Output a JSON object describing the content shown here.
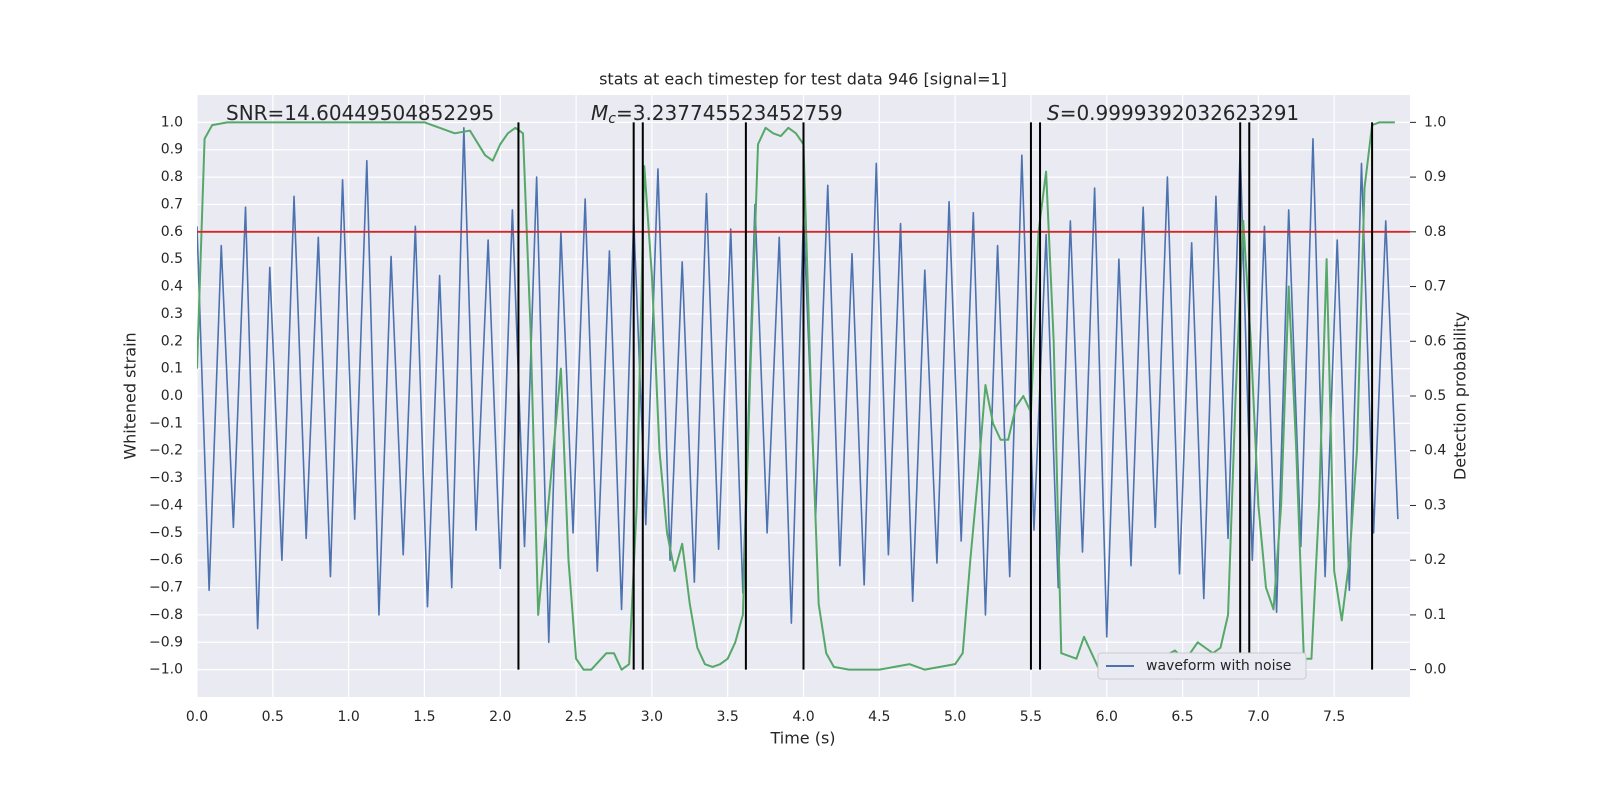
{
  "chart_data": {
    "type": "line",
    "title": "stats at each timestep for test data 946 [signal=1]",
    "x_label": "Time (s)",
    "y_label": "Whitened strain",
    "y2_label": "Detection probability",
    "annotations": [
      {
        "text": "SNR=14.60449504852295"
      },
      {
        "symbol": "M",
        "subscript": "c",
        "text": "=3.237745523452759"
      },
      {
        "symbol": "S",
        "text": "=0.9999392032623291"
      }
    ],
    "xlim": [
      0,
      8.0
    ],
    "ylim": [
      -1.1,
      1.1
    ],
    "y2lim": [
      -0.05,
      1.05
    ],
    "xticks": [
      {
        "value": 0,
        "label": "0.0"
      },
      0.5,
      {
        "value": 1,
        "label": "1.0"
      },
      1.5,
      {
        "value": 2,
        "label": "2.0"
      },
      2.5,
      {
        "value": 3,
        "label": "3.0"
      },
      3.5,
      {
        "value": 4,
        "label": "4.0"
      },
      4.5,
      {
        "value": 5,
        "label": "5.0"
      },
      5.5,
      {
        "value": 6,
        "label": "6.0"
      },
      6.5,
      {
        "value": 7,
        "label": "7.0"
      },
      7.5
    ],
    "yticks": [
      {
        "value": -1,
        "label": "−1.0"
      },
      {
        "value": -0.9,
        "label": "−0.9"
      },
      {
        "value": -0.8,
        "label": "−0.8"
      },
      {
        "value": -0.7,
        "label": "−0.7"
      },
      {
        "value": -0.6,
        "label": "−0.6"
      },
      {
        "value": -0.5,
        "label": "−0.5"
      },
      {
        "value": -0.4,
        "label": "−0.4"
      },
      {
        "value": -0.3,
        "label": "−0.3"
      },
      {
        "value": -0.2,
        "label": "−0.2"
      },
      {
        "value": -0.1,
        "label": "−0.1"
      },
      {
        "value": 0,
        "label": "0.0"
      },
      0.1,
      0.2,
      0.3,
      0.4,
      0.5,
      0.6,
      0.7,
      0.8,
      0.9,
      {
        "value": 1,
        "label": "1.0"
      }
    ],
    "y2ticks": [
      {
        "value": 0,
        "label": "0.0"
      },
      0.1,
      0.2,
      0.3,
      0.4,
      0.5,
      0.6,
      0.7,
      0.8,
      0.9,
      {
        "value": 1,
        "label": "1.0"
      }
    ],
    "grid": true,
    "legend": "lower right",
    "series": [
      {
        "name": "waveform with noise",
        "color": "#4c72b0",
        "x": [
          0,
          0.08,
          0.16,
          0.24,
          0.32,
          0.4,
          0.48,
          0.56,
          0.64,
          0.72,
          0.8,
          0.88,
          0.96,
          1.04,
          1.12,
          1.2,
          1.28,
          1.36,
          1.44,
          1.52,
          1.6,
          1.68,
          1.76,
          1.84,
          1.92,
          2.0,
          2.08,
          2.16,
          2.24,
          2.32,
          2.4,
          2.48,
          2.56,
          2.64,
          2.72,
          2.8,
          2.88,
          2.96,
          3.04,
          3.12,
          3.2,
          3.28,
          3.36,
          3.44,
          3.52,
          3.6,
          3.68,
          3.76,
          3.84,
          3.92,
          4.0,
          4.08,
          4.16,
          4.24,
          4.32,
          4.4,
          4.48,
          4.56,
          4.64,
          4.72,
          4.8,
          4.88,
          4.96,
          5.04,
          5.12,
          5.2,
          5.28,
          5.36,
          5.44,
          5.52,
          5.6,
          5.68,
          5.76,
          5.84,
          5.92,
          6.0,
          6.08,
          6.16,
          6.24,
          6.32,
          6.4,
          6.48,
          6.56,
          6.64,
          6.72,
          6.8,
          6.88,
          6.96,
          7.04,
          7.12,
          7.2,
          7.28,
          7.36,
          7.44,
          7.52,
          7.6,
          7.68,
          7.76,
          7.84,
          7.92
        ],
        "values": [
          0.62,
          -0.71,
          0.55,
          -0.48,
          0.69,
          -0.85,
          0.47,
          -0.6,
          0.73,
          -0.52,
          0.58,
          -0.66,
          0.79,
          -0.45,
          0.86,
          -0.8,
          0.51,
          -0.58,
          0.62,
          -0.77,
          0.44,
          -0.7,
          0.98,
          -0.49,
          0.57,
          -0.63,
          0.68,
          -0.55,
          0.8,
          -0.9,
          0.6,
          -0.5,
          0.72,
          -0.64,
          0.53,
          -0.78,
          0.65,
          -0.47,
          0.83,
          -0.6,
          0.49,
          -0.68,
          0.74,
          -0.56,
          0.61,
          -0.72,
          0.7,
          -0.5,
          0.58,
          -0.83,
          0.66,
          -0.44,
          0.77,
          -0.62,
          0.52,
          -0.69,
          0.85,
          -0.58,
          0.63,
          -0.75,
          0.46,
          -0.61,
          0.71,
          -0.53,
          0.67,
          -0.8,
          0.55,
          -0.66,
          0.88,
          -0.49,
          0.59,
          -0.7,
          0.64,
          -0.57,
          0.76,
          -0.88,
          0.5,
          -0.62,
          0.69,
          -0.48,
          0.8,
          -0.65,
          0.56,
          -0.74,
          0.73,
          -0.52,
          0.9,
          -0.6,
          0.62,
          -0.79,
          0.68,
          -0.55,
          0.94,
          -0.66,
          0.57,
          -0.71,
          0.85,
          -0.5,
          0.64,
          -0.45
        ]
      },
      {
        "color": "#55a868",
        "axis": "y2",
        "x": [
          0,
          0.05,
          0.1,
          0.2,
          0.5,
          1.0,
          1.5,
          1.6,
          1.7,
          1.8,
          1.9,
          1.95,
          2.0,
          2.05,
          2.1,
          2.15,
          2.2,
          2.25,
          2.3,
          2.35,
          2.4,
          2.45,
          2.5,
          2.55,
          2.6,
          2.7,
          2.75,
          2.8,
          2.85,
          2.9,
          2.95,
          3.0,
          3.05,
          3.1,
          3.15,
          3.2,
          3.25,
          3.3,
          3.35,
          3.4,
          3.45,
          3.5,
          3.55,
          3.6,
          3.65,
          3.7,
          3.75,
          3.8,
          3.85,
          3.9,
          3.95,
          4.0,
          4.05,
          4.1,
          4.15,
          4.2,
          4.3,
          4.5,
          4.6,
          4.7,
          4.8,
          4.9,
          5.0,
          5.05,
          5.1,
          5.15,
          5.2,
          5.25,
          5.3,
          5.35,
          5.4,
          5.45,
          5.5,
          5.55,
          5.6,
          5.65,
          5.7,
          5.8,
          5.85,
          5.9,
          5.95,
          6.0,
          6.2,
          6.3,
          6.35,
          6.45,
          6.5,
          6.55,
          6.6,
          6.65,
          6.7,
          6.75,
          6.8,
          6.85,
          6.9,
          6.95,
          7.0,
          7.05,
          7.1,
          7.15,
          7.2,
          7.25,
          7.3,
          7.35,
          7.4,
          7.45,
          7.5,
          7.55,
          7.6,
          7.65,
          7.7,
          7.75,
          7.8,
          7.85,
          7.9
        ],
        "values": [
          0.55,
          0.97,
          0.995,
          1.0,
          1.0,
          1.0,
          1.0,
          0.99,
          0.98,
          0.985,
          0.94,
          0.93,
          0.96,
          0.98,
          0.99,
          0.98,
          0.62,
          0.1,
          0.25,
          0.4,
          0.55,
          0.2,
          0.02,
          0.0,
          0.0,
          0.03,
          0.03,
          0.0,
          0.01,
          0.3,
          0.92,
          0.72,
          0.4,
          0.25,
          0.18,
          0.23,
          0.12,
          0.04,
          0.01,
          0.005,
          0.01,
          0.02,
          0.05,
          0.1,
          0.55,
          0.96,
          0.99,
          0.98,
          0.975,
          0.99,
          0.98,
          0.96,
          0.5,
          0.12,
          0.03,
          0.005,
          0.0,
          0.0,
          0.005,
          0.01,
          0.0,
          0.005,
          0.01,
          0.03,
          0.2,
          0.35,
          0.52,
          0.45,
          0.42,
          0.42,
          0.48,
          0.5,
          0.47,
          0.8,
          0.91,
          0.6,
          0.03,
          0.02,
          0.06,
          0.03,
          0.0,
          0.0,
          0.005,
          0.005,
          0.02,
          0.035,
          0.02,
          0.03,
          0.05,
          0.04,
          0.03,
          0.04,
          0.1,
          0.5,
          0.82,
          0.6,
          0.3,
          0.15,
          0.11,
          0.3,
          0.7,
          0.4,
          0.02,
          0.02,
          0.3,
          0.75,
          0.18,
          0.09,
          0.2,
          0.4,
          0.88,
          0.995,
          1.0,
          1.0,
          1.0
        ]
      }
    ],
    "hlines": [
      {
        "y": 0.6,
        "color": "#d62728"
      }
    ],
    "vlines": {
      "color": "#000000",
      "x": [
        2.12,
        2.88,
        2.94,
        3.62,
        4.0,
        5.5,
        5.56,
        6.88,
        6.94,
        7.75
      ]
    }
  }
}
